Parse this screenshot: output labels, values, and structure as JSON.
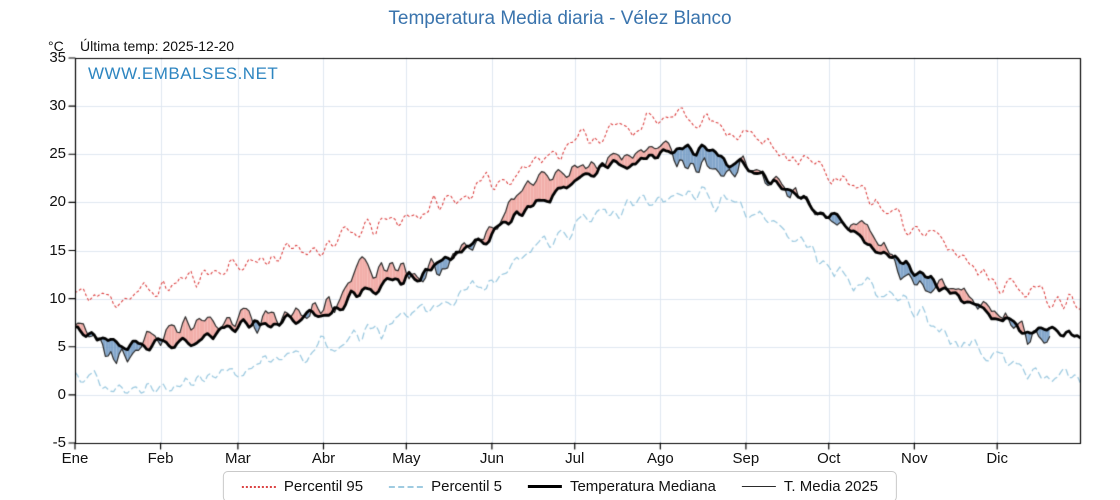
{
  "title": "Temperatura Media diaria - Vélez Blanco",
  "unit_label": "°C",
  "last_temp_label": "Última temp: 2025-12-20",
  "watermark": "WWW.EMBALSES.NET",
  "colors": {
    "title": "#3a74ad",
    "watermark": "#2e86c1",
    "p95_line": "#dc4444",
    "p5_line": "#9fcbe1",
    "median_line": "#000000",
    "t2025_line": "#2b2b2b",
    "fill_above": "#f0a09a",
    "fill_below": "#6d97c2",
    "grid": "#dfe7f0",
    "axis": "#000000"
  },
  "legend": {
    "items": [
      {
        "label": "Percentil 95",
        "style": "dotted",
        "color": "#dc4444",
        "thickness": 2
      },
      {
        "label": "Percentil 5",
        "style": "dashed",
        "color": "#9fcbe1",
        "thickness": 2
      },
      {
        "label": "Temperatura Mediana",
        "style": "solid",
        "color": "#000000",
        "thickness": 3
      },
      {
        "label": "T. Media 2025",
        "style": "solid",
        "color": "#2b2b2b",
        "thickness": 1.5
      }
    ]
  },
  "chart_data": {
    "type": "line",
    "title": "Temperatura Media diaria - Vélez Blanco",
    "xlabel": "",
    "ylabel": "°C",
    "ylim": [
      -5,
      35
    ],
    "yticks": [
      -5,
      0,
      5,
      10,
      15,
      20,
      25,
      30,
      35
    ],
    "x_months": [
      "Ene",
      "Feb",
      "Mar",
      "Abr",
      "May",
      "Jun",
      "Jul",
      "Ago",
      "Sep",
      "Oct",
      "Nov",
      "Dic"
    ],
    "month_start_days": [
      1,
      32,
      60,
      91,
      121,
      152,
      182,
      213,
      244,
      274,
      305,
      335
    ],
    "days_in_year": 365,
    "anchors_day": [
      1,
      15,
      32,
      46,
      60,
      74,
      91,
      105,
      121,
      135,
      152,
      166,
      182,
      196,
      213,
      227,
      244,
      258,
      274,
      288,
      305,
      319,
      335,
      349,
      365
    ],
    "series": [
      {
        "name": "Percentil 95",
        "key": "p95",
        "values": [
          10.5,
          10,
          11,
          12.5,
          13.5,
          14.5,
          15.5,
          17,
          18.5,
          20,
          22,
          24,
          26.5,
          27.5,
          28.5,
          29,
          27,
          25.5,
          23,
          20.5,
          17.5,
          15,
          12,
          10.5,
          10
        ]
      },
      {
        "name": "Percentil 5",
        "key": "p5",
        "values": [
          2,
          1,
          0.5,
          1.5,
          3,
          3.5,
          5,
          6,
          8,
          9.5,
          12,
          14.5,
          17.5,
          19,
          20.5,
          21,
          19,
          16.5,
          13.5,
          11,
          8.5,
          6,
          4,
          2.5,
          2
        ]
      },
      {
        "name": "Temperatura Mediana",
        "key": "median",
        "values": [
          7,
          5.5,
          5,
          6,
          7,
          7.5,
          8.5,
          10.5,
          12,
          14,
          16.5,
          19.5,
          22.5,
          24,
          25,
          25.5,
          23.5,
          21.5,
          19,
          16,
          13,
          11,
          8,
          6.5,
          6
        ]
      },
      {
        "name": "T. Media 2025",
        "key": "t2025",
        "end_day": 354,
        "values": [
          7,
          4,
          6,
          7,
          7.5,
          8,
          9,
          13,
          13,
          12.5,
          18,
          22,
          23.5,
          25,
          26,
          23.5,
          23.5,
          21.5,
          18,
          17,
          12,
          11.5,
          8,
          6,
          null
        ]
      }
    ],
    "noise": {
      "seed": 11,
      "p95": 1.5,
      "p5": 1.4,
      "median": 0.9,
      "t2025": 1.6
    },
    "legend_position": "bottom",
    "grid": true
  }
}
